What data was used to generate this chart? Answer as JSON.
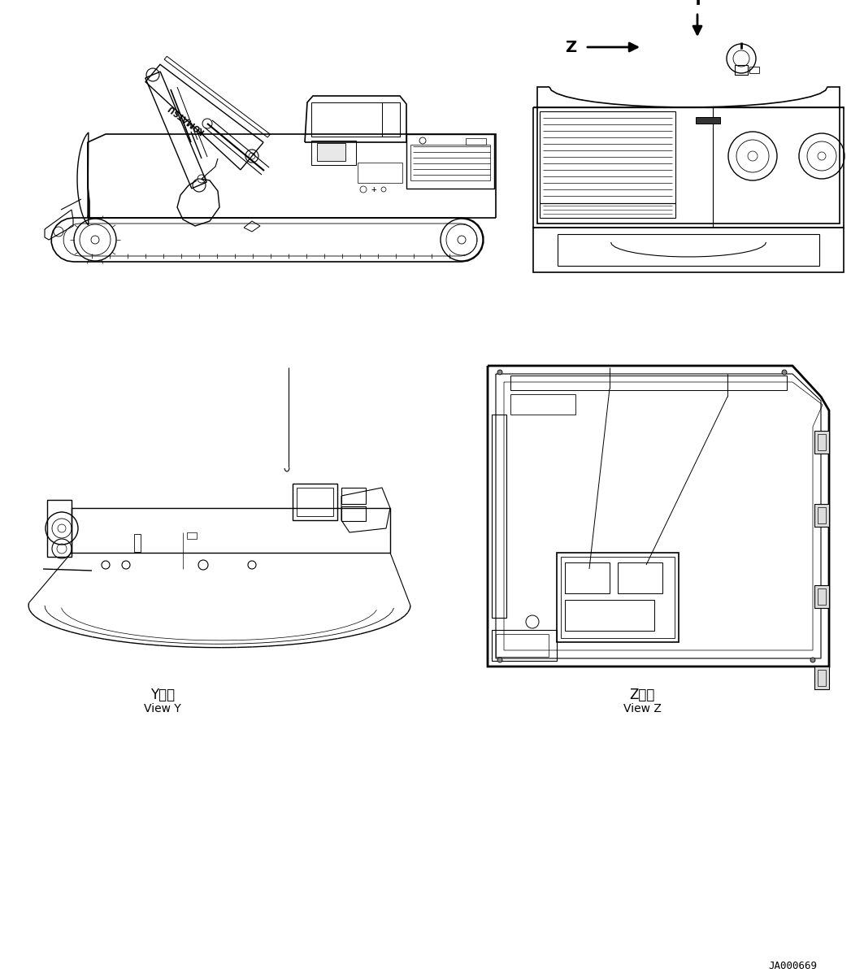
{
  "bg_color": "#ffffff",
  "line_color": "#000000",
  "doc_number": "JA000669",
  "view_y_label_jp": "Y　視",
  "view_y_label_en": "View Y",
  "view_z_label_jp": "Z　視",
  "view_z_label_en": "View Z",
  "arrow_y_label": "Y",
  "arrow_z_label": "Z",
  "font_size_labels": 11,
  "font_size_doc": 9,
  "fig_width": 10.47,
  "fig_height": 12.02,
  "dpi": 100
}
